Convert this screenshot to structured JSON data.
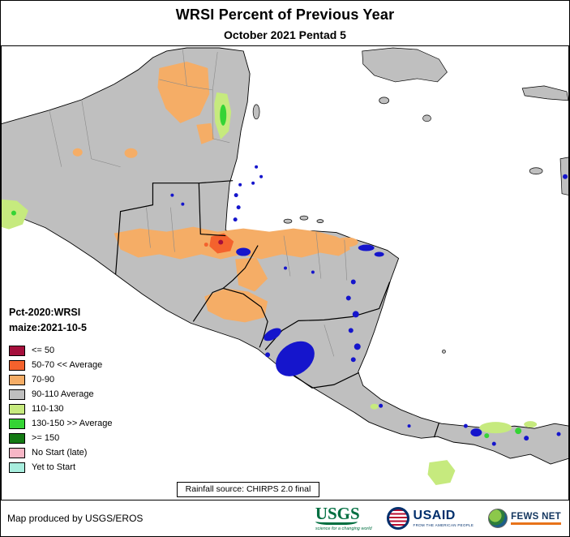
{
  "header": {
    "title": "WRSI Percent of Previous Year",
    "subtitle": "October 2021 Pentad 5"
  },
  "legend": {
    "title_line1": "Pct-2020:WRSI",
    "title_line2": "maize:2021-10-5",
    "items": [
      {
        "label": "<= 50",
        "color": "#a50f3c"
      },
      {
        "label": "50-70 << Average",
        "color": "#f4622d"
      },
      {
        "label": "70-90",
        "color": "#f5ad66"
      },
      {
        "label": "90-110 Average",
        "color": "#bfbfbf"
      },
      {
        "label": "110-130",
        "color": "#c6ea7e"
      },
      {
        "label": "130-150 >> Average",
        "color": "#35d435"
      },
      {
        "label": ">= 150",
        "color": "#147a14"
      },
      {
        "label": "No Start (late)",
        "color": "#f7b6c6"
      },
      {
        "label": "Yet to Start",
        "color": "#a8eede"
      }
    ]
  },
  "map": {
    "rainfall_note": "Rainfall source: CHIRPS 2.0 final"
  },
  "footer": {
    "credit": "Map produced by USGS/EROS"
  },
  "logos": {
    "usgs": {
      "text": "USGS",
      "tagline": "science for a changing world"
    },
    "usaid": {
      "text": "USAID",
      "tagline": "FROM THE AMERICAN PEOPLE"
    },
    "fewsnet": {
      "text": "FEWS NET"
    }
  },
  "colors": {
    "land": "#bfbfbf",
    "ocean": "#ffffff",
    "water": "#1515cc",
    "border": "#000000",
    "admin": "#8a8a8a",
    "wrsi-le50": "#a50f3c",
    "wrsi-50-70": "#f4622d",
    "wrsi-70-90": "#f5ad66",
    "wrsi-90-110": "#bfbfbf",
    "wrsi-110-130": "#c6ea7e",
    "wrsi-130-150": "#35d435",
    "wrsi-ge150": "#147a14",
    "wrsi-no-start": "#f7b6c6",
    "wrsi-yet-to-start": "#a8eede",
    "usgs-green": "#006f41",
    "usaid-blue": "#002f6c",
    "usaid-red": "#ba0c2f",
    "fews-orange": "#e8731a"
  }
}
